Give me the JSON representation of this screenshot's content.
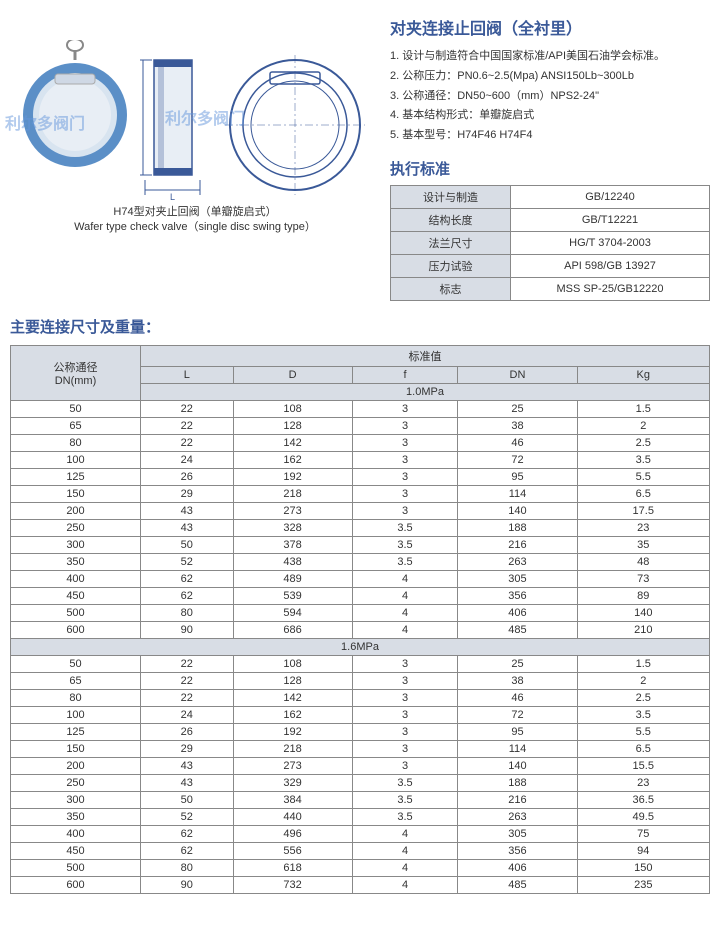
{
  "title": "对夹连接止回阀（全衬里）",
  "specs": [
    "1. 设计与制造符合中国国家标准/API美国石油学会标准。",
    "2. 公称压力：PN0.6~2.5(Mpa) ANSI150Lb~300Lb",
    "3. 公称通径：DN50~600（mm）NPS2-24\"",
    "4. 基本结构形式：单瓣旋启式",
    "5. 基本型号：H74F46 H74F4"
  ],
  "caption_cn": "H74型对夹止回阀（单瓣旋启式）",
  "caption_en": "Wafer type check valve（single disc swing type）",
  "watermark": "利尔多阀门",
  "std_title": "执行标准",
  "std_rows": [
    {
      "label": "设计与制造",
      "value": "GB/12240"
    },
    {
      "label": "结构长度",
      "value": "GB/T12221"
    },
    {
      "label": "法兰尺寸",
      "value": "HG/T 3704-2003"
    },
    {
      "label": "压力试验",
      "value": "API 598/GB 13927"
    },
    {
      "label": "标志",
      "value": "MSS SP-25/GB12220"
    }
  ],
  "dim_title": "主要连接尺寸及重量：",
  "dim_header_main": "标准值",
  "dim_header_dn": "公称通径\nDN(mm)",
  "dim_cols": [
    "L",
    "D",
    "f",
    "DN",
    "Kg"
  ],
  "pressure1": "1.0MPa",
  "pressure2": "1.6MPa",
  "rows1": [
    [
      "50",
      "22",
      "108",
      "3",
      "25",
      "1.5"
    ],
    [
      "65",
      "22",
      "128",
      "3",
      "38",
      "2"
    ],
    [
      "80",
      "22",
      "142",
      "3",
      "46",
      "2.5"
    ],
    [
      "100",
      "24",
      "162",
      "3",
      "72",
      "3.5"
    ],
    [
      "125",
      "26",
      "192",
      "3",
      "95",
      "5.5"
    ],
    [
      "150",
      "29",
      "218",
      "3",
      "114",
      "6.5"
    ],
    [
      "200",
      "43",
      "273",
      "3",
      "140",
      "17.5"
    ],
    [
      "250",
      "43",
      "328",
      "3.5",
      "188",
      "23"
    ],
    [
      "300",
      "50",
      "378",
      "3.5",
      "216",
      "35"
    ],
    [
      "350",
      "52",
      "438",
      "3.5",
      "263",
      "48"
    ],
    [
      "400",
      "62",
      "489",
      "4",
      "305",
      "73"
    ],
    [
      "450",
      "62",
      "539",
      "4",
      "356",
      "89"
    ],
    [
      "500",
      "80",
      "594",
      "4",
      "406",
      "140"
    ],
    [
      "600",
      "90",
      "686",
      "4",
      "485",
      "210"
    ]
  ],
  "rows2": [
    [
      "50",
      "22",
      "108",
      "3",
      "25",
      "1.5"
    ],
    [
      "65",
      "22",
      "128",
      "3",
      "38",
      "2"
    ],
    [
      "80",
      "22",
      "142",
      "3",
      "46",
      "2.5"
    ],
    [
      "100",
      "24",
      "162",
      "3",
      "72",
      "3.5"
    ],
    [
      "125",
      "26",
      "192",
      "3",
      "95",
      "5.5"
    ],
    [
      "150",
      "29",
      "218",
      "3",
      "114",
      "6.5"
    ],
    [
      "200",
      "43",
      "273",
      "3",
      "140",
      "15.5"
    ],
    [
      "250",
      "43",
      "329",
      "3.5",
      "188",
      "23"
    ],
    [
      "300",
      "50",
      "384",
      "3.5",
      "216",
      "36.5"
    ],
    [
      "350",
      "52",
      "440",
      "3.5",
      "263",
      "49.5"
    ],
    [
      "400",
      "62",
      "496",
      "4",
      "305",
      "75"
    ],
    [
      "450",
      "62",
      "556",
      "4",
      "356",
      "94"
    ],
    [
      "500",
      "80",
      "618",
      "4",
      "406",
      "150"
    ],
    [
      "600",
      "90",
      "732",
      "4",
      "485",
      "235"
    ]
  ],
  "colors": {
    "accent": "#3a5998",
    "header_bg": "#d8dde5",
    "border": "#888888",
    "valve_blue": "#5b8fc7",
    "valve_light": "#d8e4f0"
  }
}
